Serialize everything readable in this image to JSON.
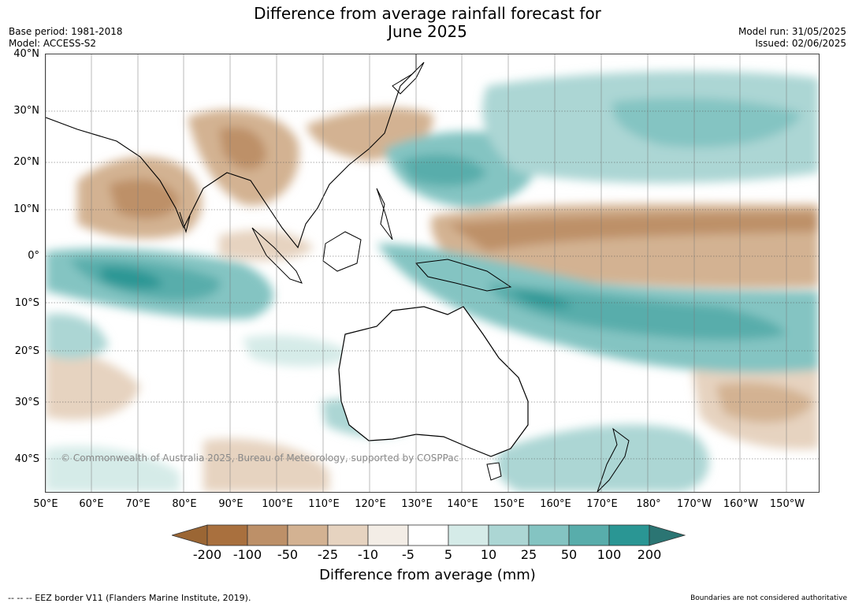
{
  "title_line1": "Difference from average rainfall forecast for",
  "title_line2": "June 2025",
  "base_period": "Base period: 1981-2018",
  "model": "Model: ACCESS-S2",
  "model_run": "Model run: 31/05/2025",
  "issued": "Issued: 02/06/2025",
  "copyright": "© Commonwealth of Australia 2025, Bureau of Meteorology, supported by COSPPac",
  "lat_labels": [
    "40°N",
    "30°N",
    "20°N",
    "10°N",
    "0°",
    "10°S",
    "20°S",
    "30°S",
    "40°S"
  ],
  "lon_labels": [
    "50°E",
    "60°E",
    "70°E",
    "80°E",
    "90°E",
    "100°E",
    "110°E",
    "120°E",
    "130°E",
    "140°E",
    "150°E",
    "160°E",
    "170°E",
    "180°",
    "170°W",
    "160°W",
    "150°W"
  ],
  "colorbar": {
    "label": "Difference from average (mm)",
    "ticks": [
      "-200",
      "-100",
      "-50",
      "-25",
      "-10",
      "-5",
      "5",
      "10",
      "25",
      "50",
      "100",
      "200"
    ],
    "colors": [
      "#9b6634",
      "#a9703e",
      "#bd9068",
      "#d3b292",
      "#e6d3c0",
      "#f3ede6",
      "#ffffff",
      "#d5ebe8",
      "#acd6d4",
      "#84c4c2",
      "#58adab",
      "#2a9694",
      "#2b7573"
    ]
  },
  "footer_left": "--  --  -- EEZ border V11 (Flanders Marine Institute, 2019).",
  "footer_right": "Boundaries are not considered authoritative"
}
